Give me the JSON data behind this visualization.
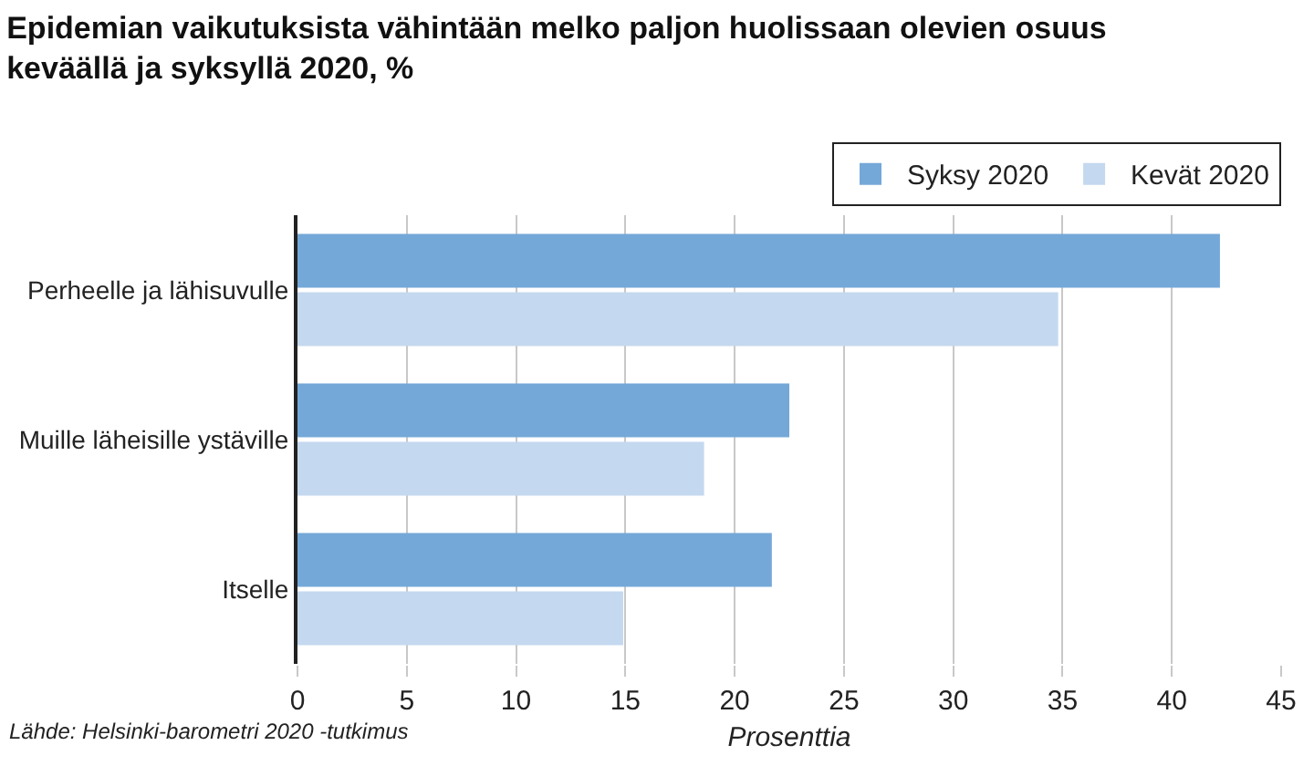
{
  "chart_data": {
    "type": "bar",
    "orientation": "horizontal",
    "title": "Epidemian vaikutuksista vähintään melko paljon huolissaan olevien osuus keväällä ja syksyllä 2020, %",
    "categories": [
      "Perheelle ja lähisuvulle",
      "Muille läheisille ystäville",
      "Itselle"
    ],
    "series": [
      {
        "name": "Syksy 2020",
        "color": "#74a8d8",
        "values": [
          42.2,
          22.5,
          21.7
        ]
      },
      {
        "name": "Kevät 2020",
        "color": "#c4d8ef",
        "values": [
          34.8,
          18.6,
          14.9
        ]
      }
    ],
    "xlabel": "Prosenttia",
    "xlim": [
      0,
      45
    ],
    "xticks": [
      0,
      5,
      10,
      15,
      20,
      25,
      30,
      35,
      40,
      45
    ],
    "grid": "x",
    "legend": "top right",
    "annotations": [
      "Lähde: Helsinki-barometri 2020 -tutkimus"
    ]
  }
}
